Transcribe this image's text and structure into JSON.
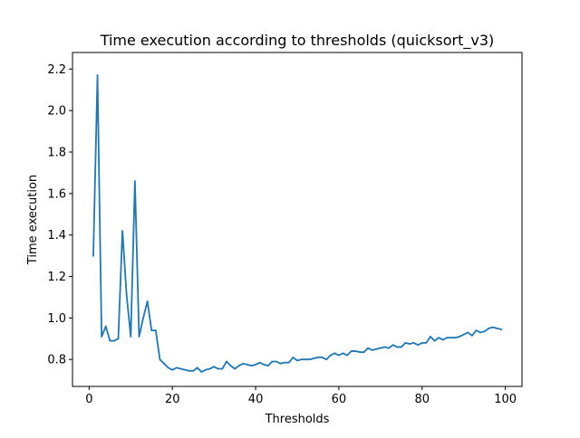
{
  "chart_data": {
    "type": "line",
    "title": "Time execution according to thresholds (quicksort_v3)",
    "xlabel": "Thresholds",
    "ylabel": "Time execution",
    "xlim": [
      -4,
      104
    ],
    "ylim": [
      0.67,
      2.28
    ],
    "grid": false,
    "xticks": [
      0,
      20,
      40,
      60,
      80,
      100
    ],
    "xtick_labels": [
      "0",
      "20",
      "40",
      "60",
      "80",
      "100"
    ],
    "yticks": [
      0.8,
      1.0,
      1.2,
      1.4,
      1.6,
      1.8,
      2.0,
      2.2
    ],
    "ytick_labels": [
      "0.8",
      "1.0",
      "1.2",
      "1.4",
      "1.6",
      "1.8",
      "2.0",
      "2.2"
    ],
    "series": [
      {
        "color": "#1f77b4",
        "x": [
          1,
          2,
          3,
          4,
          5,
          6,
          7,
          8,
          9,
          10,
          11,
          12,
          13,
          14,
          15,
          16,
          17,
          18,
          19,
          20,
          21,
          22,
          23,
          24,
          25,
          26,
          27,
          28,
          29,
          30,
          31,
          32,
          33,
          34,
          35,
          36,
          37,
          38,
          39,
          40,
          41,
          42,
          43,
          44,
          45,
          46,
          47,
          48,
          49,
          50,
          51,
          52,
          53,
          54,
          55,
          56,
          57,
          58,
          59,
          60,
          61,
          62,
          63,
          64,
          65,
          66,
          67,
          68,
          69,
          70,
          71,
          72,
          73,
          74,
          75,
          76,
          77,
          78,
          79,
          80,
          81,
          82,
          83,
          84,
          85,
          86,
          87,
          88,
          89,
          90,
          91,
          92,
          93,
          94,
          95,
          96,
          97,
          98,
          99
        ],
        "values": [
          1.3,
          2.17,
          0.91,
          0.96,
          0.89,
          0.89,
          0.9,
          1.42,
          1.11,
          0.91,
          1.66,
          0.91,
          1.0,
          1.08,
          0.94,
          0.94,
          0.8,
          0.78,
          0.76,
          0.75,
          0.76,
          0.755,
          0.75,
          0.745,
          0.745,
          0.76,
          0.74,
          0.75,
          0.755,
          0.765,
          0.755,
          0.755,
          0.79,
          0.77,
          0.755,
          0.77,
          0.78,
          0.775,
          0.77,
          0.775,
          0.785,
          0.775,
          0.77,
          0.79,
          0.79,
          0.78,
          0.785,
          0.785,
          0.81,
          0.795,
          0.8,
          0.8,
          0.8,
          0.805,
          0.81,
          0.81,
          0.8,
          0.82,
          0.83,
          0.82,
          0.83,
          0.82,
          0.84,
          0.84,
          0.835,
          0.835,
          0.855,
          0.845,
          0.85,
          0.855,
          0.86,
          0.855,
          0.87,
          0.86,
          0.86,
          0.88,
          0.875,
          0.88,
          0.87,
          0.88,
          0.88,
          0.91,
          0.89,
          0.905,
          0.895,
          0.905,
          0.905,
          0.905,
          0.91,
          0.92,
          0.93,
          0.915,
          0.94,
          0.93,
          0.935,
          0.95,
          0.955,
          0.95,
          0.945
        ]
      }
    ]
  }
}
